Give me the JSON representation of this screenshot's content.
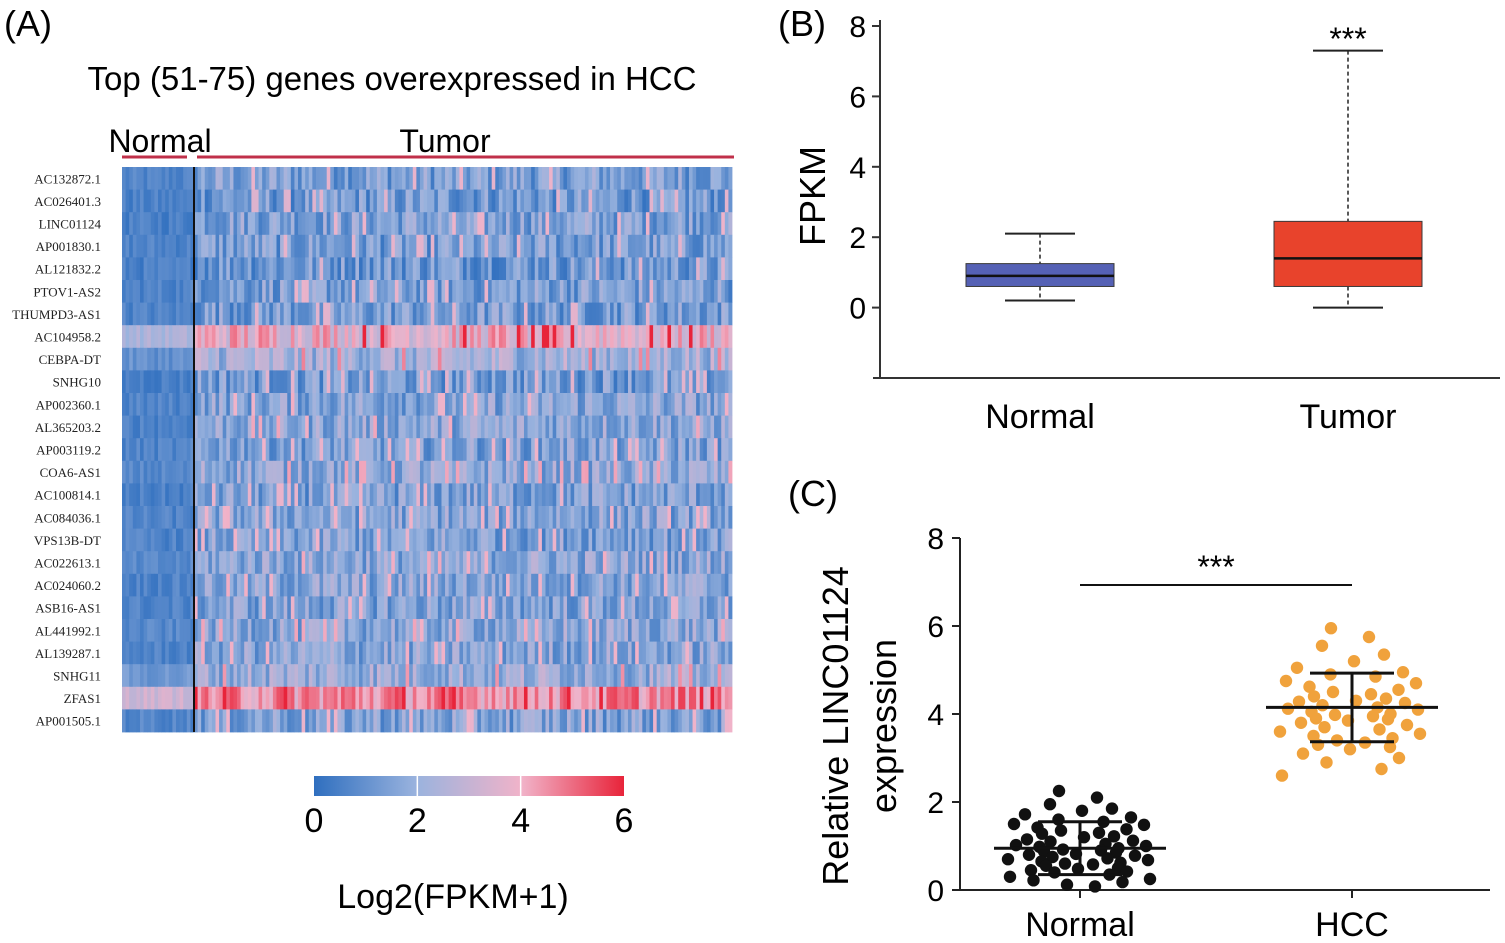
{
  "panels": {
    "a": "(A)",
    "b": "(B)",
    "c": "(C)"
  },
  "chart_data": [
    {
      "type": "heatmap",
      "title": "Top (51-75) genes overexpressed in HCC",
      "groups": [
        {
          "label": "Normal",
          "columns": 20
        },
        {
          "label": "Tumor",
          "columns": 150
        }
      ],
      "genes": [
        "AC132872.1",
        "AC026401.3",
        "LINC01124",
        "AP001830.1",
        "AL121832.2",
        "PTOV1-AS2",
        "THUMPD3-AS1",
        "AC104958.2",
        "CEBPA-DT",
        "SNHG10",
        "AP002360.1",
        "AL365203.2",
        "AP003119.2",
        "COA6-AS1",
        "AC100814.1",
        "AC084036.1",
        "VPS13B-DT",
        "AC022613.1",
        "AC024060.2",
        "ASB16-AS1",
        "AL441992.1",
        "AL139287.1",
        "SNHG11",
        "ZFAS1",
        "AP001505.1"
      ],
      "gene_mean_tumor": [
        1.5,
        1.3,
        1.6,
        1.4,
        1.3,
        1.5,
        1.4,
        3.9,
        2.3,
        1.4,
        1.7,
        1.8,
        1.6,
        1.9,
        1.5,
        1.7,
        1.6,
        1.8,
        1.7,
        1.6,
        1.8,
        1.7,
        2.1,
        4.6,
        1.6
      ],
      "gene_mean_normal": [
        0.6,
        0.5,
        0.5,
        0.6,
        0.5,
        0.6,
        0.6,
        2.4,
        1.0,
        0.5,
        0.6,
        0.6,
        0.6,
        0.7,
        0.5,
        0.6,
        0.6,
        0.7,
        0.6,
        0.6,
        0.7,
        0.6,
        1.2,
        3.2,
        0.7
      ],
      "colorbar": {
        "ticks": [
          0,
          2,
          4,
          6
        ],
        "range": [
          0,
          6
        ],
        "colors": [
          "#2f6fbf",
          "#9ab3de",
          "#f1b3c9",
          "#e8243a"
        ],
        "label": "Log2(FPKM+1)"
      }
    },
    {
      "type": "box",
      "ylabel": "FPKM",
      "ylim": [
        -2,
        8
      ],
      "yticks": [
        0,
        2,
        4,
        6,
        8
      ],
      "significance": "***",
      "boxes": [
        {
          "name": "Normal",
          "min": 0.2,
          "q1": 0.6,
          "median": 0.9,
          "q3": 1.25,
          "max": 2.1,
          "color": "#5561b5"
        },
        {
          "name": "Tumor",
          "min": 0.0,
          "q1": 0.6,
          "median": 1.4,
          "q3": 2.45,
          "max": 7.3,
          "color": "#e8432c"
        }
      ]
    },
    {
      "type": "scatter",
      "ylabel_lines": [
        "Relative LINC01124",
        "expression"
      ],
      "ylim": [
        0,
        8
      ],
      "yticks": [
        0,
        2,
        4,
        6,
        8
      ],
      "categories": [
        "Normal",
        "HCC"
      ],
      "significance": "***",
      "groups": [
        {
          "name": "Normal",
          "color": "#111111",
          "mean": 0.95,
          "sd": 0.6,
          "values": [
            2.25,
            2.1,
            1.95,
            1.85,
            1.8,
            1.72,
            1.65,
            1.6,
            1.55,
            1.5,
            1.48,
            1.42,
            1.38,
            1.35,
            1.3,
            1.28,
            1.22,
            1.2,
            1.15,
            1.12,
            1.1,
            1.05,
            1.02,
            1.0,
            0.98,
            0.95,
            0.92,
            0.9,
            0.88,
            0.85,
            0.82,
            0.8,
            0.78,
            0.75,
            0.72,
            0.7,
            0.68,
            0.65,
            0.62,
            0.6,
            0.58,
            0.55,
            0.5,
            0.48,
            0.45,
            0.42,
            0.4,
            0.35,
            0.3,
            0.25,
            0.22,
            0.18,
            0.12,
            0.08
          ]
        },
        {
          "name": "HCC",
          "color": "#f0a23c",
          "mean": 4.15,
          "sd": 0.78,
          "values": [
            5.95,
            5.75,
            5.55,
            5.35,
            5.2,
            5.05,
            4.95,
            4.9,
            4.85,
            4.75,
            4.7,
            4.62,
            4.55,
            4.5,
            4.45,
            4.4,
            4.35,
            4.3,
            4.28,
            4.25,
            4.2,
            4.15,
            4.12,
            4.1,
            4.05,
            4.0,
            3.98,
            3.95,
            3.9,
            3.88,
            3.85,
            3.8,
            3.75,
            3.7,
            3.65,
            3.6,
            3.55,
            3.5,
            3.45,
            3.4,
            3.35,
            3.3,
            3.25,
            3.2,
            3.1,
            3.0,
            2.9,
            2.75,
            2.6
          ]
        }
      ]
    }
  ]
}
